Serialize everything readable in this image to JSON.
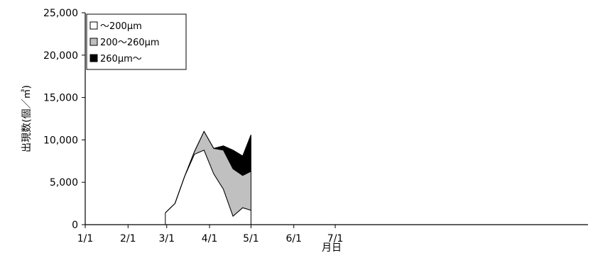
{
  "chart_data": {
    "type": "area",
    "stacked": true,
    "xlabel": "月日",
    "ylabel": "出現数(個／㎥)",
    "ylim": [
      0,
      25000
    ],
    "yticks": [
      0,
      5000,
      10000,
      15000,
      20000,
      25000
    ],
    "ytick_labels": [
      "0",
      "5,000",
      "10,000",
      "15,000",
      "20,000",
      "25,000"
    ],
    "x_domain": [
      "1/1",
      "12/31"
    ],
    "xticks": [
      "1/1",
      "2/1",
      "3/1",
      "4/1",
      "5/1",
      "6/1",
      "7/1"
    ],
    "grid": false,
    "legend_position": "top-left",
    "x": [
      "2/28",
      "3/7",
      "3/14",
      "3/21",
      "3/28",
      "4/4",
      "4/11",
      "4/18",
      "4/25",
      "5/1"
    ],
    "series": [
      {
        "name": "〜200μm",
        "color": "#ffffff",
        "values": [
          1400,
          2500,
          5700,
          8300,
          8800,
          6000,
          4200,
          1000,
          2000,
          1700
        ]
      },
      {
        "name": "200〜260μm",
        "color": "#c0c0c0",
        "values": [
          0,
          0,
          0,
          300,
          2200,
          3000,
          4600,
          5600,
          3800,
          4600
        ]
      },
      {
        "name": "260μm〜",
        "color": "#000000",
        "values": [
          0,
          0,
          0,
          0,
          0,
          0,
          500,
          2200,
          2300,
          4300
        ]
      }
    ]
  }
}
